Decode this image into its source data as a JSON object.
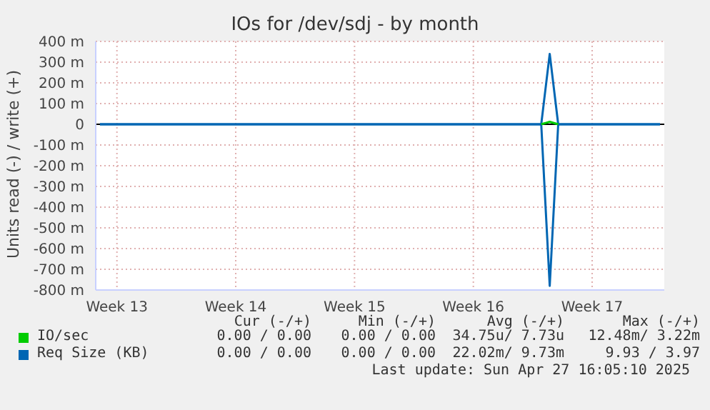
{
  "chart_data": {
    "type": "line",
    "title": "IOs for /dev/sdj - by month",
    "ylabel": "Units read (-) / write (+)",
    "categories": [
      null,
      null,
      "Week 13",
      null,
      null,
      null,
      null,
      null,
      null,
      null,
      null,
      null,
      null,
      null,
      null,
      null,
      "Week 14",
      null,
      null,
      null,
      null,
      null,
      null,
      null,
      null,
      null,
      null,
      null,
      null,
      null,
      "Week 15",
      null,
      null,
      null,
      null,
      null,
      null,
      null,
      null,
      null,
      null,
      null,
      null,
      null,
      "Week 16",
      null,
      null,
      null,
      null,
      null,
      null,
      null,
      null,
      null,
      null,
      null,
      null,
      null,
      "Week 17",
      null,
      null,
      null,
      null,
      null,
      null,
      null,
      null
    ],
    "ylim": [
      -800,
      400
    ],
    "yticks": [
      {
        "value": -800,
        "label": "-800 m"
      },
      {
        "value": -700,
        "label": "-700 m"
      },
      {
        "value": -600,
        "label": "-600 m"
      },
      {
        "value": -500,
        "label": "-500 m"
      },
      {
        "value": -400,
        "label": "-400 m"
      },
      {
        "value": -300,
        "label": "-300 m"
      },
      {
        "value": -200,
        "label": "-200 m"
      },
      {
        "value": -100,
        "label": "-100 m"
      },
      0,
      {
        "value": 100,
        "label": "100 m"
      },
      {
        "value": 200,
        "label": "200 m"
      },
      {
        "value": 300,
        "label": "300 m"
      },
      {
        "value": 400,
        "label": "400 m"
      }
    ],
    "series": [
      {
        "name": "IO/sec",
        "color": "#00cc00",
        "values": [
          null,
          null,
          null,
          null,
          null,
          null,
          null,
          null,
          null,
          null,
          null,
          null,
          null,
          null,
          null,
          null,
          null,
          null,
          null,
          null,
          null,
          null,
          null,
          null,
          null,
          null,
          null,
          null,
          null,
          null,
          null,
          null,
          null,
          null,
          null,
          null,
          null,
          null,
          null,
          null,
          null,
          null,
          null,
          null,
          null,
          null,
          null,
          null,
          null,
          null,
          null,
          null,
          0,
          12,
          0,
          null,
          null,
          null,
          null,
          null,
          null,
          null,
          null,
          null,
          null,
          null,
          null
        ]
      },
      {
        "name": "Req Size (KB)",
        "color": "#0066b3",
        "values": [
          0,
          0,
          0,
          0,
          0,
          0,
          0,
          0,
          0,
          0,
          0,
          0,
          0,
          0,
          0,
          0,
          0,
          0,
          0,
          0,
          0,
          0,
          0,
          0,
          0,
          0,
          0,
          0,
          0,
          0,
          0,
          0,
          0,
          0,
          0,
          0,
          0,
          0,
          0,
          0,
          0,
          0,
          0,
          0,
          0,
          0,
          0,
          0,
          0,
          0,
          0,
          0,
          0,
          -780,
          0,
          0,
          0,
          0,
          0,
          0,
          0,
          0,
          0,
          0,
          0,
          0,
          0
        ]
      },
      {
        "color": "#0066b3",
        "values": [
          0,
          0,
          0,
          0,
          0,
          0,
          0,
          0,
          0,
          0,
          0,
          0,
          0,
          0,
          0,
          0,
          0,
          0,
          0,
          0,
          0,
          0,
          0,
          0,
          0,
          0,
          0,
          0,
          0,
          0,
          0,
          0,
          0,
          0,
          0,
          0,
          0,
          0,
          0,
          0,
          0,
          0,
          0,
          0,
          0,
          0,
          0,
          0,
          0,
          0,
          0,
          0,
          0,
          340,
          0,
          0,
          0,
          0,
          0,
          0,
          0,
          0,
          0,
          0,
          0,
          0,
          0
        ]
      }
    ],
    "ref_lines": [
      {
        "axis": "y",
        "value": 0,
        "color": "#000000"
      }
    ],
    "grid": true,
    "legend": "bottom",
    "marker": "none",
    "line_style": "solid",
    "annotations": [
      "Cur (-/+)",
      "Min (-/+)",
      "Avg (-/+)",
      "Max (-/+)",
      "0.00 / 0.00",
      "0.00 / 0.00",
      "34.75u/ 7.73u",
      "12.48m/ 3.22m",
      "0.00 / 0.00",
      "0.00 / 0.00",
      "22.02m/ 9.73m",
      "9.93 / 3.97",
      "Last update: Sun Apr 27 16:05:10 2025"
    ]
  }
}
